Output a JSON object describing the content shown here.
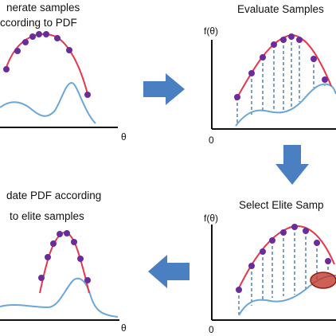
{
  "panels": {
    "top_left": {
      "title_line1": "nerate samples",
      "title_line2": "ccording to PDF",
      "x_axis_label": "θ"
    },
    "top_right": {
      "title": "Evaluate Samples",
      "y_axis_label": "f(θ)",
      "origin_label": "0"
    },
    "bottom_left": {
      "title_line1": "date PDF according",
      "title_line2": "to elite samples",
      "x_axis_label": "θ"
    },
    "bottom_right": {
      "title": "Select Elite Samp",
      "y_axis_label": "f(θ)",
      "origin_label": "0"
    }
  },
  "colors": {
    "fitness_curve": "#e8364a",
    "pdf_curve": "#6aa6d8",
    "sample_point": "#6a2c9c",
    "elite_ellipse": "#c0392b",
    "arrow": "#4a7fc1",
    "axis": "#111111",
    "dashed_line": "#2e5f9e"
  },
  "arrows": [
    {
      "direction": "right",
      "from": "top_left",
      "to": "top_right"
    },
    {
      "direction": "down",
      "from": "top_right",
      "to": "bottom_right"
    },
    {
      "direction": "left",
      "from": "bottom_right",
      "to": "bottom_left"
    }
  ]
}
